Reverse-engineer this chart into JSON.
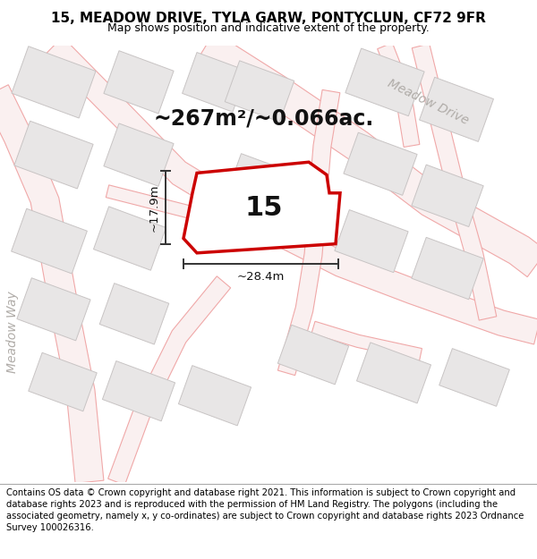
{
  "title": "15, MEADOW DRIVE, TYLA GARW, PONTYCLUN, CF72 9FR",
  "subtitle": "Map shows position and indicative extent of the property.",
  "footer": "Contains OS data © Crown copyright and database right 2021. This information is subject to Crown copyright and database rights 2023 and is reproduced with the permission of HM Land Registry. The polygons (including the associated geometry, namely x, y co-ordinates) are subject to Crown copyright and database rights 2023 Ordnance Survey 100026316.",
  "area_text": "~267m²/~0.066ac.",
  "property_number": "15",
  "dim_width": "~28.4m",
  "dim_height": "~17.9m",
  "street_label_1": "Meadow Drive",
  "street_label_2": "Meadow Way",
  "map_bg": "#f7f5f5",
  "property_fill": "#ffffff",
  "property_edge": "#cc0000",
  "building_fill": "#e8e6e6",
  "building_edge": "#c8c4c4",
  "road_outline_color": "#f0a8a8",
  "road_fill_color": "#faf0f0",
  "dim_color": "#333333",
  "street_label_color": "#b0aca8",
  "title_fontsize": 11,
  "subtitle_fontsize": 9,
  "footer_fontsize": 7.2
}
